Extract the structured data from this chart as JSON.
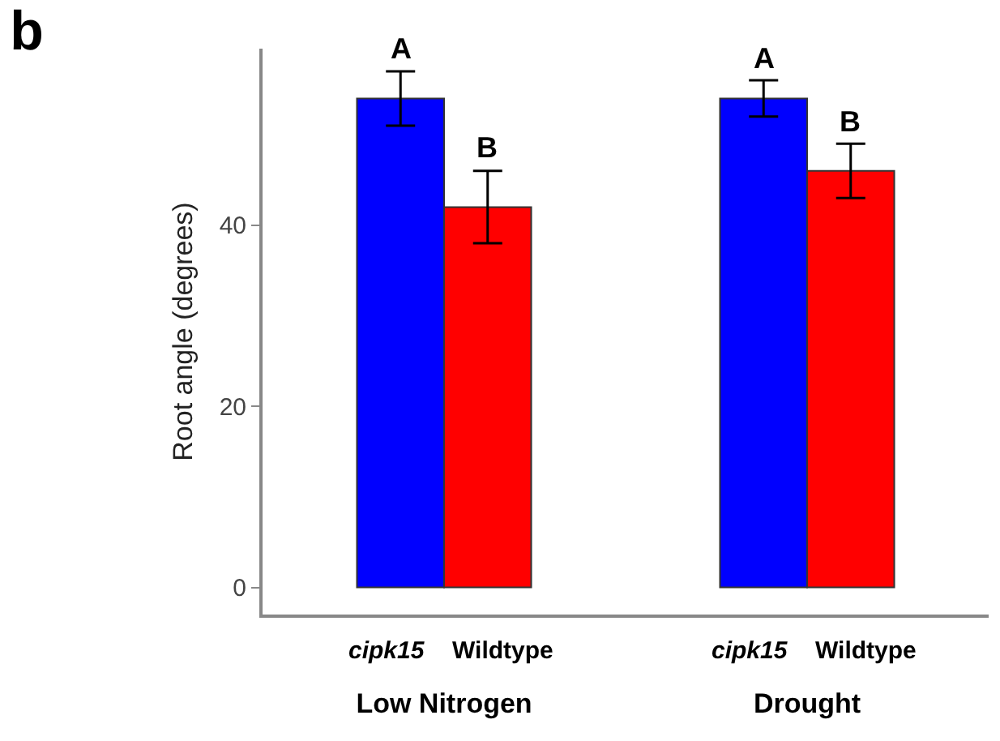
{
  "chart_data": {
    "type": "bar",
    "title": "b",
    "ylabel": "Root angle (degrees)",
    "categories": [
      "Low Nitrogen",
      "Drought"
    ],
    "series": [
      {
        "name": "cipk15",
        "color": "#0000ff",
        "values": [
          54,
          54
        ],
        "errors": [
          3,
          2
        ],
        "value_labels": [
          "A",
          "A"
        ]
      },
      {
        "name": "Wildtype",
        "color": "#ff0000",
        "values": [
          42,
          46
        ],
        "errors": [
          4,
          3
        ],
        "value_labels": [
          "B",
          "B"
        ]
      }
    ],
    "ylim": [
      -3,
      59.5
    ],
    "yticks": [
      0,
      20,
      40
    ],
    "grid": false,
    "legend": false
  }
}
